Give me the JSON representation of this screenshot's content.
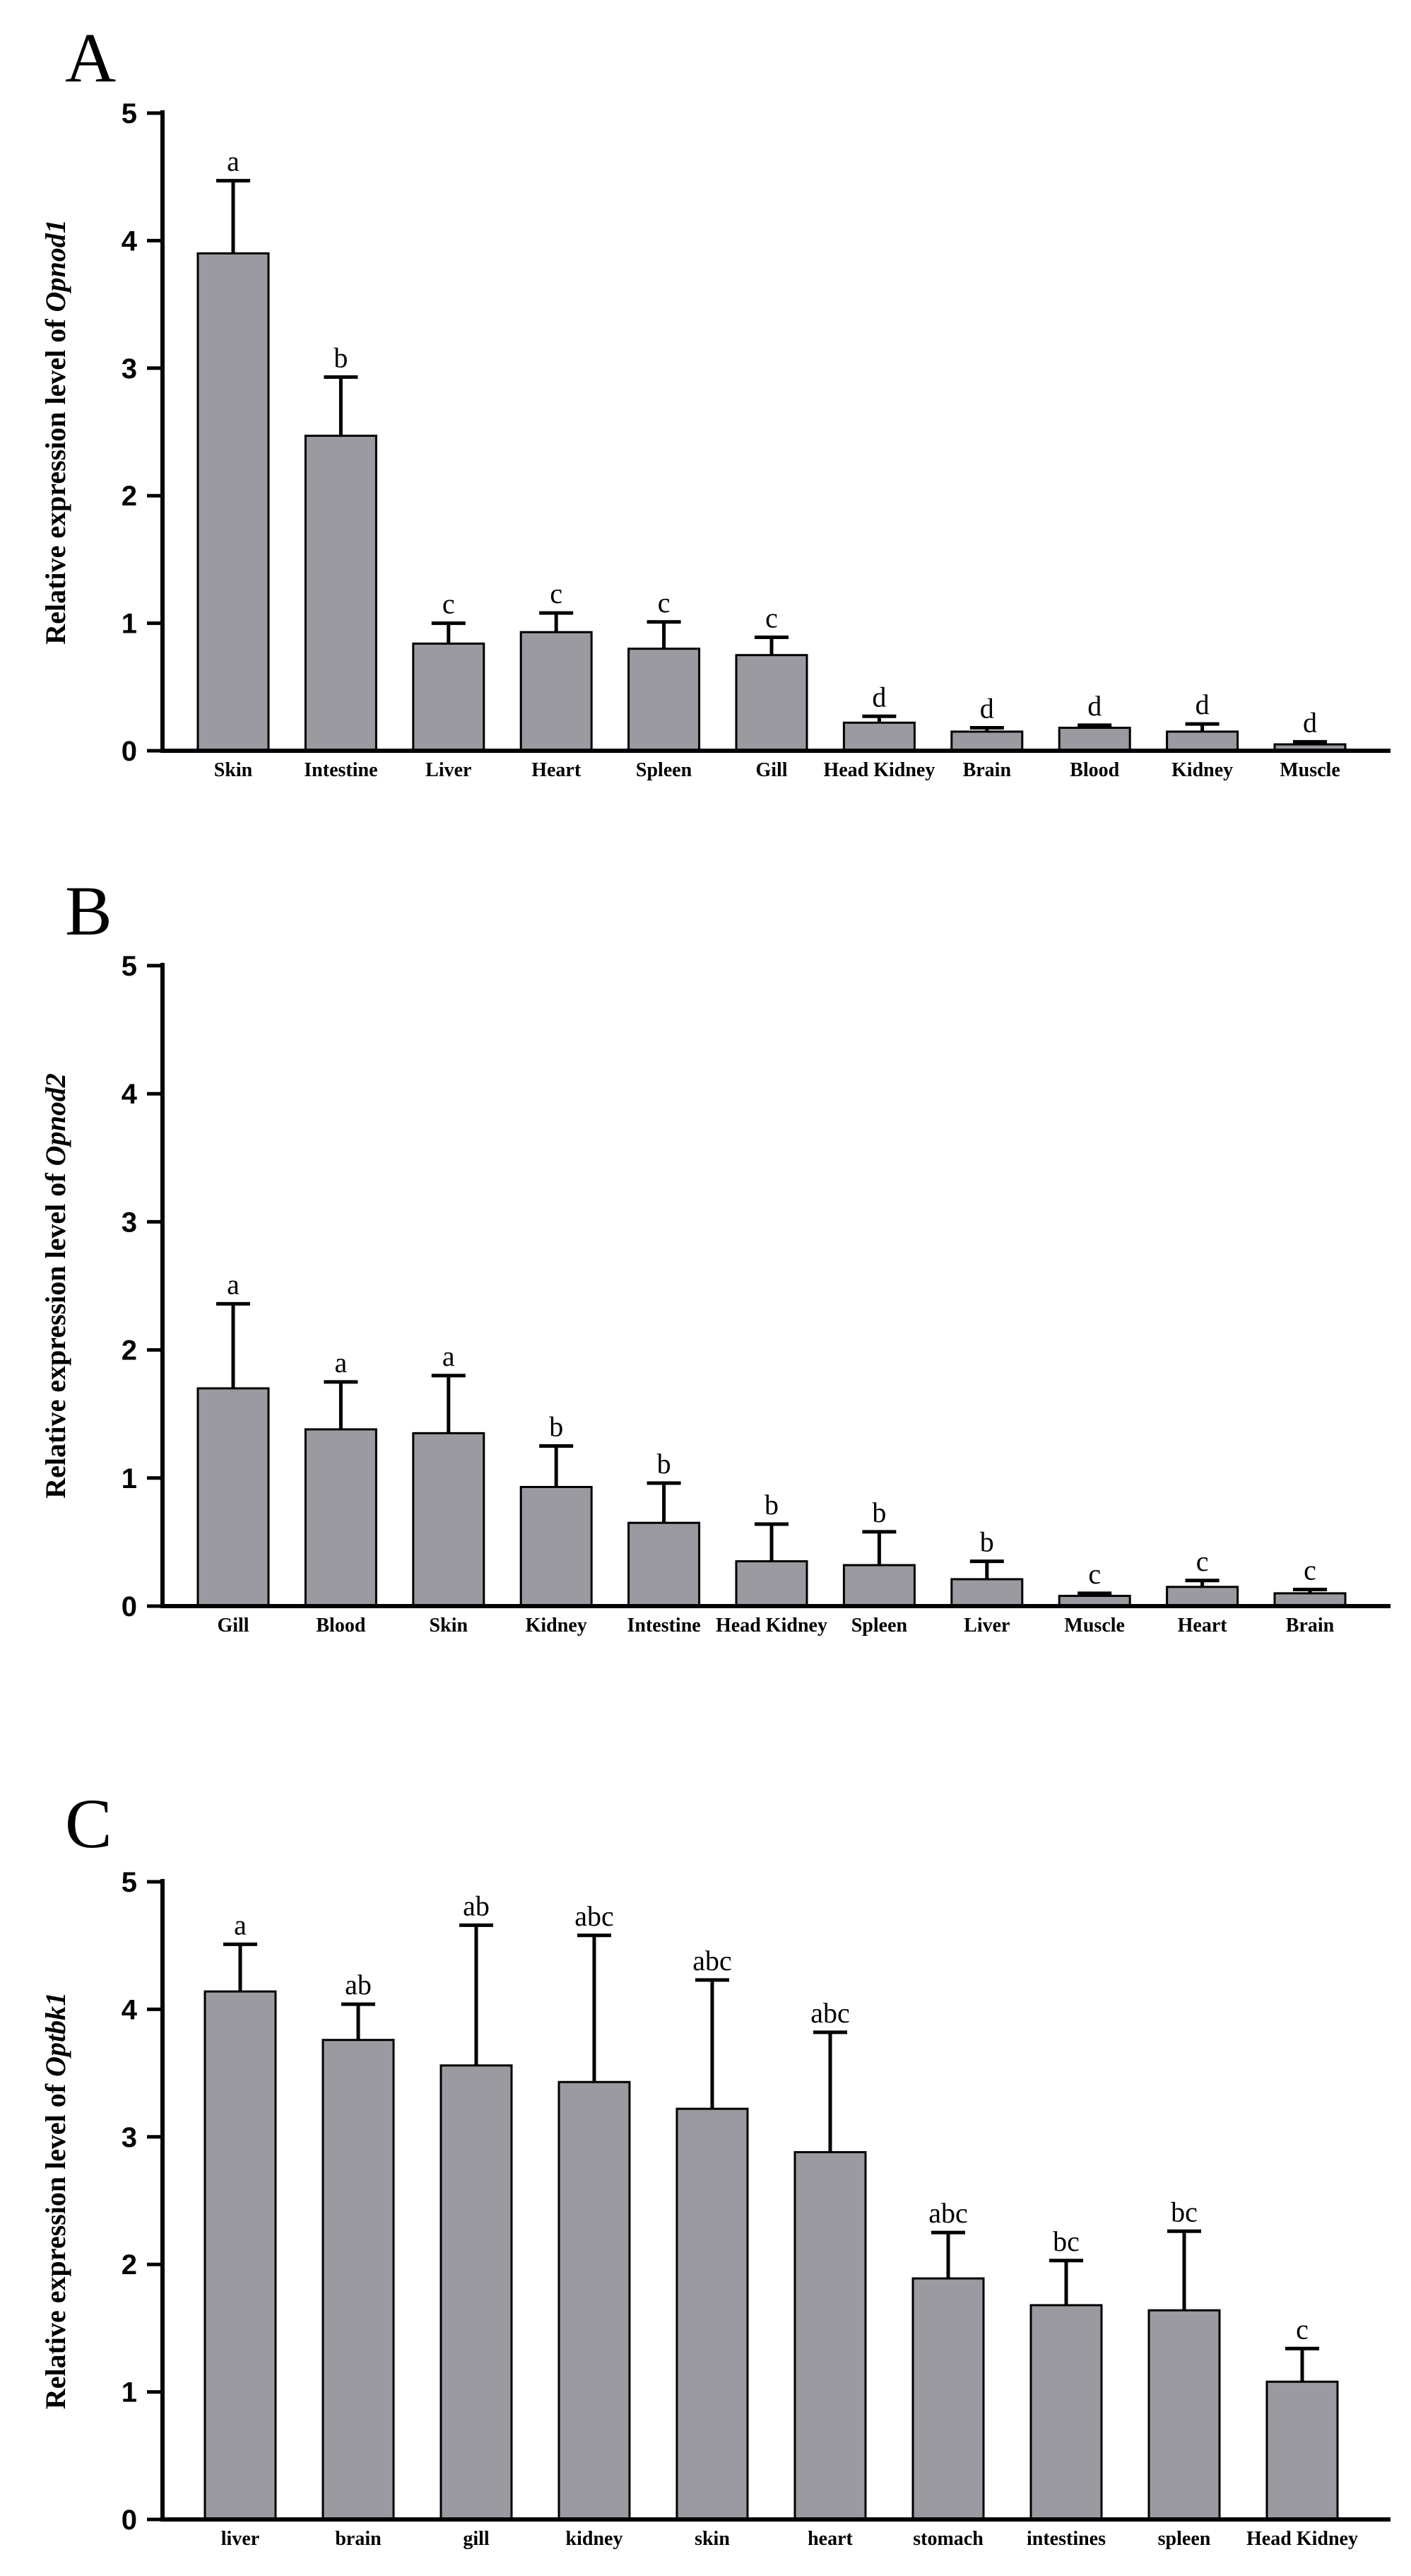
{
  "chart_data": [
    {
      "type": "bar",
      "panel": "A",
      "ylabel_prefix": "Relative expression level of ",
      "ylabel_gene": "Opnod1",
      "ylim": [
        0,
        5
      ],
      "yticks": [
        0,
        1,
        2,
        3,
        4,
        5
      ],
      "categories": [
        "Skin",
        "Intestine",
        "Liver",
        "Heart",
        "Spleen",
        "Gill",
        "Head Kidney",
        "Brain",
        "Blood",
        "Kidney",
        "Muscle"
      ],
      "values": [
        3.9,
        2.47,
        0.84,
        0.93,
        0.8,
        0.75,
        0.22,
        0.15,
        0.18,
        0.15,
        0.05
      ],
      "errors": [
        0.57,
        0.46,
        0.16,
        0.15,
        0.21,
        0.14,
        0.05,
        0.03,
        0.02,
        0.06,
        0.02
      ],
      "significance": [
        "a",
        "b",
        "c",
        "c",
        "c",
        "c",
        "d",
        "d",
        "d",
        "d",
        "d"
      ],
      "bar_color": "#9b9aa0"
    },
    {
      "type": "bar",
      "panel": "B",
      "ylabel_prefix": "Relative expression level of ",
      "ylabel_gene": "Opnod2",
      "ylim": [
        0,
        5
      ],
      "yticks": [
        0,
        1,
        2,
        3,
        4,
        5
      ],
      "categories": [
        "Gill",
        "Blood",
        "Skin",
        "Kidney",
        "Intestine",
        "Head Kidney",
        "Spleen",
        "Liver",
        "Muscle",
        "Heart",
        "Brain"
      ],
      "values": [
        1.7,
        1.38,
        1.35,
        0.93,
        0.65,
        0.35,
        0.32,
        0.21,
        0.08,
        0.15,
        0.1
      ],
      "errors": [
        0.66,
        0.37,
        0.45,
        0.32,
        0.31,
        0.29,
        0.26,
        0.14,
        0.02,
        0.05,
        0.03
      ],
      "significance": [
        "a",
        "a",
        "a",
        "b",
        "b",
        "b",
        "b",
        "b",
        "c",
        "c",
        "c"
      ],
      "bar_color": "#9b9aa0"
    },
    {
      "type": "bar",
      "panel": "C",
      "ylabel_prefix": "Relative expression level of ",
      "ylabel_gene": "Optbk1",
      "ylim": [
        0,
        5
      ],
      "yticks": [
        0,
        1,
        2,
        3,
        4,
        5
      ],
      "categories": [
        "liver",
        "brain",
        "gill",
        "kidney",
        "skin",
        "heart",
        "stomach",
        "intestines",
        "spleen",
        "Head Kidney"
      ],
      "values": [
        4.14,
        3.76,
        3.56,
        3.43,
        3.22,
        2.88,
        1.89,
        1.68,
        1.64,
        1.08
      ],
      "errors": [
        0.37,
        0.28,
        1.1,
        1.15,
        1.01,
        0.94,
        0.36,
        0.35,
        0.62,
        0.26
      ],
      "significance": [
        "a",
        "ab",
        "ab",
        "abc",
        "abc",
        "abc",
        "abc",
        "bc",
        "bc",
        "c"
      ],
      "bar_color": "#9b9aa0"
    }
  ]
}
